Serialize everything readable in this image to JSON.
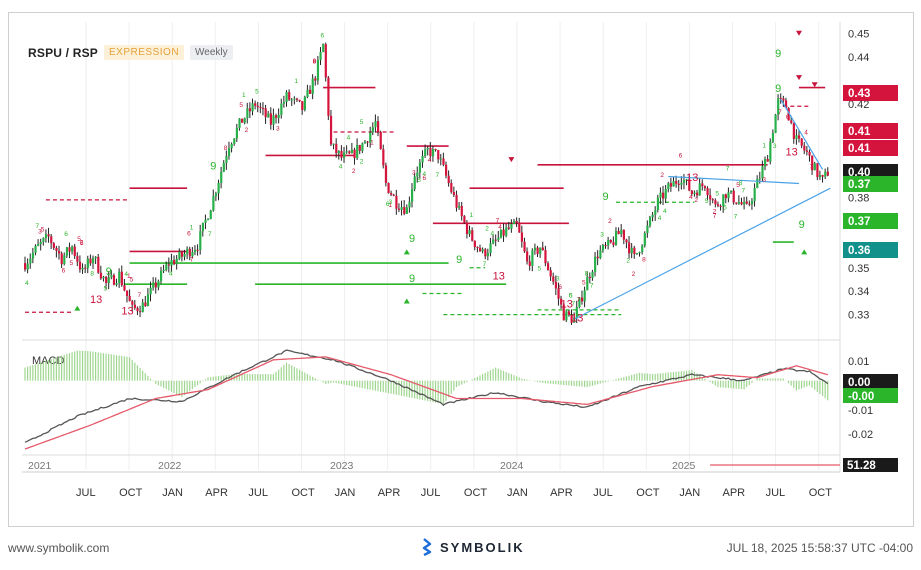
{
  "legend": {
    "symbol": "RSPU / RSP",
    "mode": "EXPRESSION",
    "interval": "Weekly"
  },
  "footer": {
    "website": "www.symbolik.com",
    "brand": "SYMBOLIK",
    "timestamp": "JUL 18, 2025 15:58:37 UTC -04:00"
  },
  "colors": {
    "up": "#27b04a",
    "down": "#d4143c",
    "wick": "#222222",
    "macd": "#555555",
    "signal": "#e55a6a",
    "hist": "#9fd68f",
    "trend": "#4aa3e8",
    "resistance": "#c8143c",
    "support": "#2ab52a"
  },
  "chart_data": [
    {
      "type": "candlestick",
      "title": "RSPU / RSP",
      "ylim": [
        0.32,
        0.455
      ],
      "y_ticks": [
        "0.45",
        "0.44",
        "0.42",
        "0.41",
        "0.40",
        "0.38",
        "0.37",
        "0.35",
        "0.34",
        "0.33"
      ],
      "x_months": [
        "JUL",
        "OCT",
        "JAN",
        "APR",
        "JUL",
        "OCT",
        "JAN",
        "APR",
        "JUL",
        "OCT",
        "JAN",
        "APR",
        "JUL",
        "OCT",
        "JAN",
        "APR",
        "JUL",
        "OCT"
      ],
      "year_labels": [
        "2021",
        "2022",
        "2023",
        "2024",
        "2025"
      ],
      "close_anchors": [
        [
          0,
          0.352
        ],
        [
          5,
          0.359
        ],
        [
          9,
          0.363
        ],
        [
          14,
          0.354
        ],
        [
          18,
          0.359
        ],
        [
          22,
          0.348
        ],
        [
          26,
          0.355
        ],
        [
          31,
          0.343
        ],
        [
          36,
          0.347
        ],
        [
          41,
          0.332
        ],
        [
          45,
          0.334
        ],
        [
          50,
          0.343
        ],
        [
          55,
          0.352
        ],
        [
          60,
          0.355
        ],
        [
          66,
          0.36
        ],
        [
          72,
          0.38
        ],
        [
          78,
          0.403
        ],
        [
          83,
          0.413
        ],
        [
          88,
          0.42
        ],
        [
          94,
          0.412
        ],
        [
          100,
          0.423
        ],
        [
          106,
          0.418
        ],
        [
          111,
          0.432
        ],
        [
          114,
          0.445
        ],
        [
          117,
          0.402
        ],
        [
          121,
          0.397
        ],
        [
          125,
          0.398
        ],
        [
          130,
          0.404
        ],
        [
          134,
          0.412
        ],
        [
          138,
          0.386
        ],
        [
          142,
          0.378
        ],
        [
          146,
          0.375
        ],
        [
          149,
          0.39
        ],
        [
          154,
          0.4
        ],
        [
          158,
          0.398
        ],
        [
          162,
          0.386
        ],
        [
          166,
          0.374
        ],
        [
          170,
          0.364
        ],
        [
          175,
          0.356
        ],
        [
          179,
          0.36
        ],
        [
          184,
          0.366
        ],
        [
          188,
          0.368
        ],
        [
          192,
          0.352
        ],
        [
          197,
          0.359
        ],
        [
          202,
          0.344
        ],
        [
          206,
          0.33
        ],
        [
          210,
          0.328
        ],
        [
          215,
          0.345
        ],
        [
          219,
          0.356
        ],
        [
          224,
          0.36
        ],
        [
          228,
          0.366
        ],
        [
          233,
          0.354
        ],
        [
          237,
          0.364
        ],
        [
          242,
          0.378
        ],
        [
          246,
          0.384
        ],
        [
          251,
          0.389
        ],
        [
          255,
          0.382
        ],
        [
          260,
          0.386
        ],
        [
          264,
          0.376
        ],
        [
          268,
          0.382
        ],
        [
          272,
          0.379
        ],
        [
          276,
          0.375
        ],
        [
          280,
          0.386
        ],
        [
          284,
          0.398
        ],
        [
          288,
          0.421
        ],
        [
          291,
          0.419
        ],
        [
          295,
          0.404
        ],
        [
          299,
          0.399
        ],
        [
          302,
          0.392
        ],
        [
          305,
          0.387
        ],
        [
          307,
          0.391
        ]
      ],
      "levels_resistance": [
        0.384,
        0.357,
        0.427,
        0.398,
        0.369,
        0.394,
        0.419
      ],
      "levels_support": [
        0.352,
        0.343,
        0.339,
        0.361
      ],
      "price_labels": [
        {
          "text": "0.43",
          "bg": "#d4143c"
        },
        {
          "text": "0.41",
          "bg": "#d4143c"
        },
        {
          "text": "0.41",
          "bg": "#d4143c"
        },
        {
          "text": "0.40",
          "bg": "#1a1a1a"
        },
        {
          "text": "0.37",
          "bg": "#2ab52a"
        },
        {
          "text": "0.37",
          "bg": "#2ab52a"
        },
        {
          "text": "0.36",
          "bg": "#12908a"
        }
      ]
    },
    {
      "type": "line",
      "title": "MACD",
      "ylim": [
        -0.024,
        0.013
      ],
      "y_ticks": [
        "0.01",
        "0.00",
        "-0.00",
        "-0.01",
        "-0.02"
      ],
      "series": [
        {
          "name": "MACD",
          "anchors": [
            [
              0,
              -0.021
            ],
            [
              20,
              -0.012
            ],
            [
              40,
              -0.006
            ],
            [
              60,
              -0.007
            ],
            [
              80,
              0.002
            ],
            [
              100,
              0.01
            ],
            [
              118,
              0.007
            ],
            [
              140,
              0.0
            ],
            [
              160,
              -0.008
            ],
            [
              180,
              -0.004
            ],
            [
              198,
              -0.007
            ],
            [
              215,
              -0.009
            ],
            [
              235,
              -0.002
            ],
            [
              255,
              0.002
            ],
            [
              275,
              0.0
            ],
            [
              290,
              0.004
            ],
            [
              300,
              0.003
            ],
            [
              307,
              -0.001
            ]
          ]
        },
        {
          "name": "Signal",
          "anchors": [
            [
              0,
              -0.023
            ],
            [
              25,
              -0.015
            ],
            [
              50,
              -0.006
            ],
            [
              70,
              -0.003
            ],
            [
              95,
              0.007
            ],
            [
              115,
              0.008
            ],
            [
              140,
              0.002
            ],
            [
              165,
              -0.006
            ],
            [
              190,
              -0.006
            ],
            [
              215,
              -0.008
            ],
            [
              240,
              -0.002
            ],
            [
              265,
              0.002
            ],
            [
              280,
              0.001
            ],
            [
              295,
              0.005
            ],
            [
              307,
              0.002
            ]
          ]
        }
      ],
      "price_labels": [
        {
          "text": "0.00",
          "bg": "#1a1a1a"
        },
        {
          "text": "-0.00",
          "bg": "#2ab52a"
        }
      ]
    },
    {
      "type": "line",
      "title": "",
      "price_labels": [
        {
          "text": "51.28",
          "bg": "#1a1a1a"
        }
      ]
    }
  ]
}
